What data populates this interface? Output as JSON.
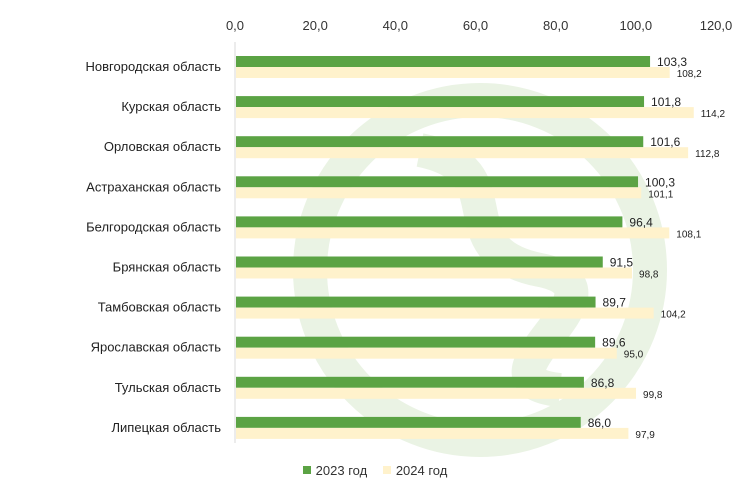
{
  "chart_data": {
    "type": "bar",
    "orientation": "horizontal",
    "categories": [
      "Новгородская область",
      "Курская область",
      "Орловская область",
      "Астраханская область",
      "Белгородская область",
      "Брянская область",
      "Тамбовская область",
      "Ярославская область",
      "Тульская область",
      "Липецкая область"
    ],
    "category_labels": [
      "Новгородская область",
      "Курская область",
      "Орловская область",
      "Астраханская область",
      "Белгородская область",
      "Брянская область",
      "Тамбовская область",
      "Ярославская область",
      "Тульская область",
      "Липецкая область"
    ],
    "series": [
      {
        "name": "2023 год",
        "color": "#5ba344",
        "values": [
          103.3,
          101.8,
          101.6,
          100.3,
          96.4,
          91.5,
          89.7,
          89.6,
          86.8,
          86.0
        ],
        "labels": [
          "103,3",
          "101,8",
          "101,6",
          "100,3",
          "96,4",
          "91,5",
          "89,7",
          "89,6",
          "86,8",
          "86,0"
        ]
      },
      {
        "name": "2024 год",
        "color": "#fff2cc",
        "values": [
          108.2,
          114.2,
          112.8,
          101.1,
          108.1,
          98.8,
          104.2,
          95.0,
          99.8,
          97.9
        ],
        "labels": [
          "108,2",
          "114,2",
          "112,8",
          "101,1",
          "108,1",
          "98,8",
          "104,2",
          "95,0",
          "99,8",
          "97,9"
        ]
      }
    ],
    "xlim": [
      0,
      120
    ],
    "x_ticks": [
      "0,0",
      "20,0",
      "40,0",
      "60,0",
      "80,0",
      "100,0",
      "120,0"
    ],
    "x_axis_position": "top",
    "grid": false,
    "legend_position": "bottom"
  }
}
